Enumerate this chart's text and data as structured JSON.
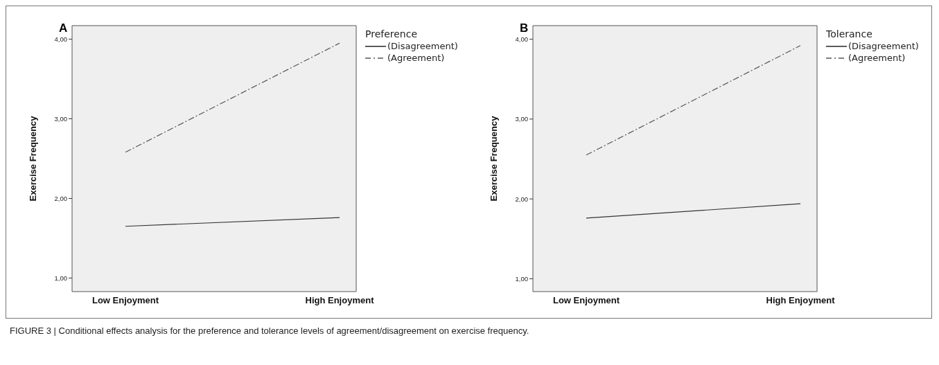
{
  "chart_data": [
    {
      "type": "line",
      "title": "A",
      "ylabel": "Exercise Frequency",
      "legend_title": "Preference",
      "categories": [
        "Low Enjoyment",
        "High Enjoyment"
      ],
      "ylim": [
        0.83,
        4.17
      ],
      "yticks": [
        {
          "value": 1,
          "label": "1,00"
        },
        {
          "value": 2,
          "label": "2,00"
        },
        {
          "value": 3,
          "label": "3,00"
        },
        {
          "value": 4,
          "label": "4,00"
        }
      ],
      "grid": false,
      "legend": "top right",
      "marker": "none",
      "series": [
        {
          "name": "(Disagreement)",
          "color": "#333333",
          "line_style": "solid",
          "values": [
            1.65,
            1.76
          ]
        },
        {
          "name": "(Agreement)",
          "color": "#555555",
          "line_style": "dashed",
          "values": [
            2.58,
            3.95
          ]
        }
      ]
    },
    {
      "type": "line",
      "title": "B",
      "ylabel": "Exercise Frequency",
      "legend_title": "Tolerance",
      "categories": [
        "Low Enjoyment",
        "High Enjoyment"
      ],
      "ylim": [
        0.84,
        4.17
      ],
      "yticks": [
        {
          "value": 1,
          "label": "1,00"
        },
        {
          "value": 2,
          "label": "2,00"
        },
        {
          "value": 3,
          "label": "3,00"
        },
        {
          "value": 4,
          "label": "4,00"
        }
      ],
      "grid": false,
      "legend": "top right",
      "marker": "none",
      "annotations": [
        "FIGURE 3 | Conditional effects analysis for the preference and tolerance levels of agreement/disagreement on exercise frequency."
      ],
      "series": [
        {
          "name": "(Disagreement)",
          "color": "#333333",
          "line_style": "solid",
          "values": [
            1.76,
            1.94
          ]
        },
        {
          "name": "(Agreement)",
          "color": "#555555",
          "line_style": "dashed",
          "values": [
            2.55,
            3.92
          ]
        }
      ]
    }
  ]
}
